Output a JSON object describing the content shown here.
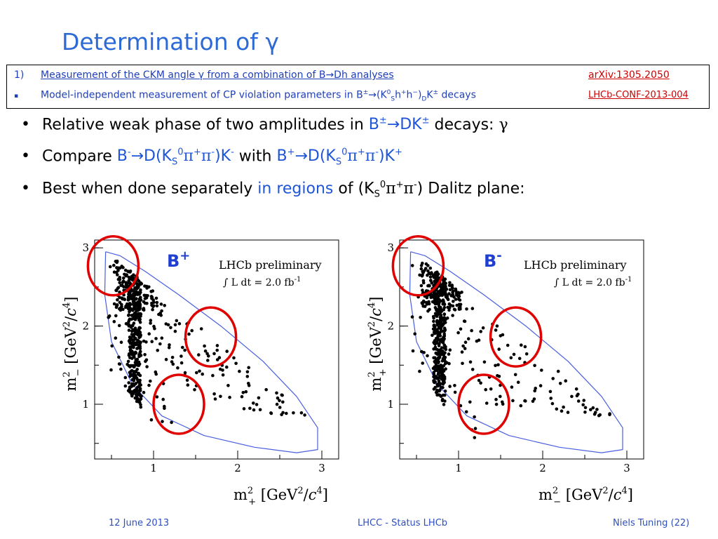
{
  "slide": {
    "title": "Determination of γ"
  },
  "references": [
    {
      "num": "1)",
      "text": "Measurement of the CKM angle γ from a combination of B→Dh analyses",
      "link": "arXiv:1305.2050"
    },
    {
      "num": "▪",
      "text_pre": "Model-independent measurement of CP violation parameters in B",
      "text_suffix_1": "±",
      "text_mid": "→(K",
      "text_sup0": "0",
      "text_subS": "S",
      "text_mid2": "h",
      "text_plus": "+",
      "text_mid3": "h",
      "text_minus": "−",
      "text_mid4": ")",
      "text_subD": "D",
      "text_mid5": "K",
      "text_pm2": "±",
      "text_end": " decays",
      "link": "LHCb-CONF-2013-004"
    }
  ],
  "bullets": {
    "b1": {
      "pre": "Relative weak phase of two amplitudes in ",
      "hl": "B",
      "hl_sup": "±",
      "hl2": "→DK",
      "hl2_sup": "±",
      "post": " decays: ",
      "gamma": "γ"
    },
    "b2": {
      "pre": "Compare ",
      "hl_a": "B",
      "hl_a_sup": "-",
      "hl_a2": "→D(K",
      "hl_a_sub": "S",
      "hl_a_sup0": "0",
      "hl_a3": "π",
      "hl_a_supp": "+",
      "hl_a4": "π",
      "hl_a_supm": "-",
      "hl_a5": ")K",
      "hl_a_supk": "-",
      "mid": " with ",
      "hl_b": "B",
      "hl_b_sup": "+",
      "hl_b2": "→D(K",
      "hl_b_sub": "S",
      "hl_b_sup0": "0",
      "hl_b3": "π",
      "hl_b_supp": "+",
      "hl_b4": "π",
      "hl_b_supm": "-",
      "hl_b5": ")K",
      "hl_b_supk": "+"
    },
    "b3": {
      "pre": "Best when done separately ",
      "hl": "in regions",
      "post1": " of (K",
      "sub": "S",
      "sup0": "0",
      "pi1": "π",
      "supp": "+",
      "pi2": "π",
      "supm": "-",
      "post2": ") Dalitz plane:"
    }
  },
  "chart_data": [
    {
      "type": "scatter",
      "label": "B+",
      "label_main": "B",
      "label_sup": "+",
      "annotation1": "LHCb preliminary",
      "annotation2": "∫ L dt = 2.0 fb",
      "annotation2_sup": "-1",
      "xlabel": "m²₊ [GeV²/c⁴]",
      "ylabel": "m²₋ [GeV²/c⁴]",
      "xlabel_parts": {
        "m": "m",
        "sup": "2",
        "sub": "+",
        "rest": " [GeV",
        "rest_sup": "2",
        "rest2": "/",
        "c": "c",
        "c_sup": "4",
        "end": "]"
      },
      "ylabel_parts": {
        "m": "m",
        "sup": "2",
        "sub": "−",
        "rest": " [GeV",
        "rest_sup": "2",
        "rest2": "/",
        "c": "c",
        "c_sup": "4",
        "end": "]"
      },
      "xlim": [
        0.3,
        3.2
      ],
      "ylim": [
        0.3,
        3.1
      ],
      "xticks": [
        "1",
        "2",
        "3"
      ],
      "yticks": [
        "1",
        "2",
        "3"
      ],
      "circles": [
        {
          "x": 0.52,
          "y": 2.77
        },
        {
          "x": 1.68,
          "y": 1.86
        },
        {
          "x": 1.3,
          "y": 1.0
        }
      ]
    },
    {
      "type": "scatter",
      "label": "B-",
      "label_main": "B",
      "label_sup": "-",
      "annotation1": "LHCb preliminary",
      "annotation2": "∫ L dt = 2.0 fb",
      "annotation2_sup": "-1",
      "xlabel": "m²₋ [GeV²/c⁴]",
      "ylabel": "m²₊ [GeV²/c⁴]",
      "xlabel_parts": {
        "m": "m",
        "sup": "2",
        "sub": "−",
        "rest": " [GeV",
        "rest_sup": "2",
        "rest2": "/",
        "c": "c",
        "c_sup": "4",
        "end": "]"
      },
      "ylabel_parts": {
        "m": "m",
        "sup": "2",
        "sub": "+",
        "rest": " [GeV",
        "rest_sup": "2",
        "rest2": "/",
        "c": "c",
        "c_sup": "4",
        "end": "]"
      },
      "xlim": [
        0.3,
        3.2
      ],
      "ylim": [
        0.3,
        3.1
      ],
      "xticks": [
        "1",
        "2",
        "3"
      ],
      "yticks": [
        "1",
        "2",
        "3"
      ],
      "circles": [
        {
          "x": 0.52,
          "y": 2.77
        },
        {
          "x": 1.68,
          "y": 1.86
        },
        {
          "x": 1.3,
          "y": 1.0
        }
      ]
    }
  ],
  "footer": {
    "date": "12 June 2013",
    "center": "LHCC - Status LHCb",
    "right": "Niels Tuning (22)"
  },
  "colors": {
    "title": "#2e6ad6",
    "highlight": "#1f55d8",
    "link": "#d00000",
    "circle": "#e00000",
    "boundary": "#4a5fe0"
  }
}
